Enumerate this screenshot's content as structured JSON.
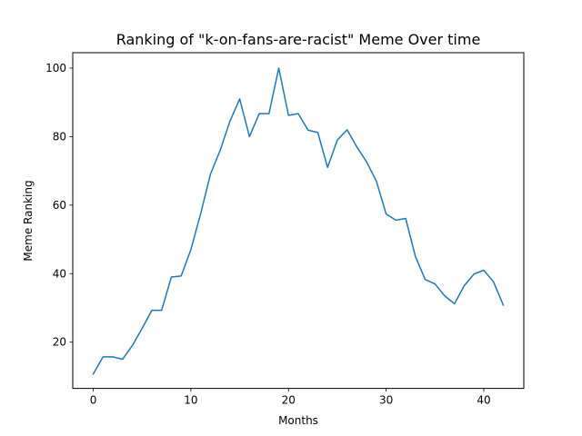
{
  "chart_data": {
    "type": "line",
    "title": "Ranking of \"k-on-fans-are-racist\" Meme Over time",
    "xlabel": "Months",
    "ylabel": "Meme Ranking",
    "xlim": [
      -2.1,
      44.1
    ],
    "ylim": [
      6.5,
      104.5
    ],
    "xticks": [
      0,
      10,
      20,
      30,
      40
    ],
    "yticks": [
      20,
      40,
      60,
      80,
      100
    ],
    "grid": false,
    "line_color": "#1f77b4",
    "series": [
      {
        "name": "k-on-fans-are-racist",
        "x": [
          0,
          1,
          2,
          3,
          4,
          5,
          6,
          7,
          8,
          9,
          10,
          11,
          12,
          13,
          14,
          15,
          16,
          17,
          18,
          19,
          20,
          21,
          22,
          23,
          24,
          25,
          26,
          27,
          28,
          29,
          30,
          31,
          32,
          33,
          34,
          35,
          36,
          37,
          38,
          39,
          40,
          41,
          42
        ],
        "values": [
          10.7,
          15.7,
          15.7,
          15.0,
          19.0,
          24.0,
          29.3,
          29.3,
          39.0,
          39.3,
          47.0,
          57.5,
          69.0,
          76.0,
          84.5,
          91.0,
          80.0,
          86.7,
          86.7,
          100.0,
          86.2,
          86.7,
          81.9,
          81.2,
          71.0,
          79.0,
          82.0,
          77.0,
          72.6,
          67.0,
          57.4,
          55.6,
          56.1,
          45.0,
          38.3,
          37.0,
          33.5,
          31.2,
          36.5,
          39.9,
          41.0,
          37.6,
          30.8
        ]
      }
    ]
  }
}
